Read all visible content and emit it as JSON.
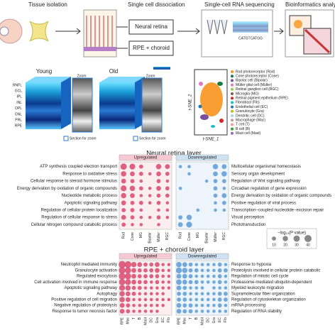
{
  "header": {
    "steps": [
      "Tissue isolation",
      "Single cell dissociation",
      "Single-cell RNA sequencing",
      "Bioinformatics analysis"
    ],
    "samples": [
      "Neural retina",
      "RPE + choroid"
    ],
    "sequence": "CATGTCATGG"
  },
  "oct": {
    "groups": [
      "Young",
      "Old"
    ],
    "zoom": "Zoom",
    "layers": [
      "RNFL",
      "GCL",
      "IPL",
      "INL",
      "OPL",
      "ONL",
      "PRL",
      "RPE"
    ],
    "section_note": "Section for zoom"
  },
  "tsne": {
    "x_label": "t-SNE_1",
    "y_label": "t-SNE_2",
    "legend": [
      {
        "name": "Rod photoreceptor (Rod)",
        "color": "#f7941d"
      },
      {
        "name": "Cone photoreceptor (Cone)",
        "color": "#1b7a3e"
      },
      {
        "name": "Bipolar cell (Bipolar)",
        "color": "#7b4fa0"
      },
      {
        "name": "Müller glial cell (Müller)",
        "color": "#e377c2"
      },
      {
        "name": "Retinal ganglion cell (RGC)",
        "color": "#8fd14f"
      },
      {
        "name": "Microglia (MG)",
        "color": "#8c564b"
      },
      {
        "name": "Retinal pigment epithelium (RPE)",
        "color": "#d62728"
      },
      {
        "name": "Fibroblast (Fib)",
        "color": "#17becf"
      },
      {
        "name": "Endothelial cell (EC)",
        "color": "#1f77b4"
      },
      {
        "name": "Granulocyte (Gra)",
        "color": "#bcbd22"
      },
      {
        "name": "Dendritic cell (DC)",
        "color": "#9edae5"
      },
      {
        "name": "Macrophage (Mac)",
        "color": "#c49c94"
      },
      {
        "name": "T cell (T)",
        "color": "#ff9896"
      },
      {
        "name": "B cell (B)",
        "color": "#2ca02c"
      },
      {
        "name": "Mast cell (Mast)",
        "color": "#9467bd"
      }
    ]
  },
  "dotplots": {
    "size_legend": {
      "title": "−log₁₀(P value)",
      "ticks": [
        10,
        20,
        30,
        40
      ]
    },
    "panels": [
      {
        "title": "Neural retina layer",
        "columns": [
          "Rod",
          "Cone",
          "MG",
          "Bipolar",
          "Müller",
          "RGC"
        ],
        "up": {
          "label": "Upregulated",
          "color": "#d9486f",
          "terms": [
            "ATP synthesis coupled electron transport",
            "Response to oxidative stress",
            "Cellular response to steroid hormone stimulus",
            "Energy derivation by oxidation of organic compounds",
            "Nucleotide metabolic process",
            "Apoptotic signaling pathway",
            "Regulation of cellular protein localization",
            "Regulation of cellular response to stress",
            "Cellular nitrogen compound catabolic process"
          ],
          "values": [
            [
              30,
              25,
              10,
              null,
              20,
              15
            ],
            [
              20,
              15,
              10,
              5,
              15,
              10
            ],
            [
              15,
              10,
              5,
              null,
              10,
              5
            ],
            [
              25,
              20,
              10,
              5,
              15,
              10
            ],
            [
              20,
              15,
              5,
              5,
              10,
              10
            ],
            [
              15,
              10,
              10,
              5,
              10,
              5
            ],
            [
              10,
              10,
              5,
              null,
              5,
              5
            ],
            [
              15,
              10,
              5,
              5,
              10,
              5
            ],
            [
              10,
              5,
              5,
              null,
              5,
              null
            ]
          ]
        },
        "down": {
          "label": "Downregulated",
          "color": "#5b9bd5",
          "terms": [
            "Multicellular organismal homeostasis",
            "Sensory organ development",
            "Regulation of Wnt signaling pathway",
            "Circadian regulation of gene expression",
            "Energy derivation by oxidation of organic compounds",
            "Positive regulation of viral process",
            "Transcription−coupled nucleotide−excision repair",
            "Visual perception",
            "Phototransduction"
          ],
          "values": [
            [
              5,
              5,
              null,
              null,
              20,
              15
            ],
            [
              null,
              5,
              null,
              null,
              15,
              20
            ],
            [
              null,
              null,
              null,
              5,
              10,
              10
            ],
            [
              5,
              null,
              null,
              null,
              10,
              5
            ],
            [
              null,
              null,
              null,
              null,
              10,
              15
            ],
            [
              null,
              null,
              null,
              null,
              5,
              10
            ],
            [
              null,
              null,
              5,
              null,
              5,
              5
            ],
            [
              10,
              20,
              null,
              null,
              null,
              null
            ],
            [
              15,
              25,
              null,
              null,
              null,
              null
            ]
          ]
        }
      },
      {
        "title": "RPE + choroid layer",
        "columns": [
          "RPE",
          "Mac",
          "T",
          "B",
          "Mast",
          "DC",
          "Gra",
          "EC",
          "Fib"
        ],
        "up": {
          "label": "Upregulated",
          "color": "#d9486f",
          "terms": [
            "Neutrophil mediated immunity",
            "Granulocyte activation",
            "Regulated exocytosis",
            "Cell activation involved in immune response",
            "Apoptotic signaling pathway",
            "Autophagy",
            "Positive regulation of cell migration",
            "Negative regulation of proteolysis",
            "Response to tumor necrosis factor"
          ],
          "values": [
            [
              40,
              35,
              20,
              15,
              10,
              10,
              15,
              5,
              5
            ],
            [
              35,
              30,
              15,
              10,
              10,
              10,
              15,
              5,
              5
            ],
            [
              35,
              30,
              15,
              10,
              10,
              10,
              10,
              5,
              5
            ],
            [
              30,
              25,
              15,
              10,
              10,
              5,
              10,
              5,
              5
            ],
            [
              25,
              20,
              10,
              10,
              5,
              5,
              5,
              5,
              5
            ],
            [
              20,
              15,
              10,
              5,
              5,
              5,
              5,
              5,
              null
            ],
            [
              20,
              15,
              5,
              5,
              5,
              5,
              5,
              5,
              5
            ],
            [
              15,
              10,
              5,
              5,
              5,
              5,
              5,
              5,
              null
            ],
            [
              15,
              10,
              5,
              5,
              5,
              5,
              5,
              null,
              null
            ]
          ]
        },
        "down": {
          "label": "Downregulated",
          "color": "#5b9bd5",
          "terms": [
            "Response to hypoxia",
            "Proteolysis involved in cellular protein catabolic",
            "Regulation of mitotic cell cycle",
            "Proteasome-mediated ubiquitin-dependent",
            "Myeloid leukocyte migration",
            "Supramolecular fiber organization",
            "Regulation of cytoskeleton organization",
            "mRNA processing",
            "Regulation of RNA stability"
          ],
          "values": [
            [
              20,
              15,
              10,
              5,
              5,
              5,
              5,
              10,
              5
            ],
            [
              25,
              20,
              10,
              10,
              5,
              5,
              5,
              10,
              10
            ],
            [
              15,
              15,
              10,
              5,
              5,
              5,
              5,
              10,
              5
            ],
            [
              20,
              15,
              10,
              10,
              5,
              5,
              5,
              10,
              5
            ],
            [
              15,
              10,
              5,
              5,
              5,
              null,
              5,
              5,
              5
            ],
            [
              10,
              10,
              5,
              5,
              5,
              5,
              5,
              10,
              10
            ],
            [
              10,
              10,
              5,
              5,
              5,
              5,
              5,
              10,
              10
            ],
            [
              15,
              10,
              10,
              5,
              5,
              5,
              5,
              10,
              5
            ],
            [
              15,
              10,
              10,
              5,
              5,
              5,
              5,
              5,
              5
            ]
          ]
        }
      }
    ]
  }
}
